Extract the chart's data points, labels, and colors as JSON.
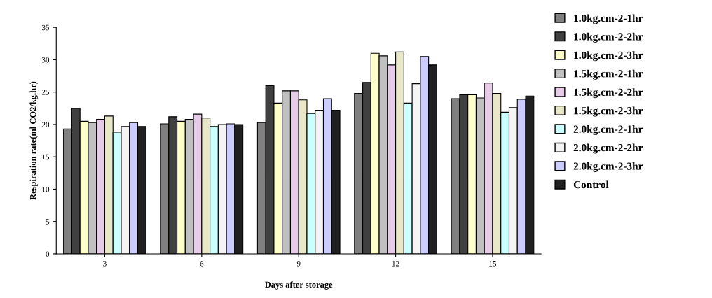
{
  "chart_data": {
    "type": "bar",
    "xlabel": "Days after storage",
    "ylabel": "Respiration rate(ml CO2/kg.hr)",
    "categories": [
      "3",
      "6",
      "9",
      "12",
      "15"
    ],
    "series": [
      {
        "name": "1.0kg.cm-2-1hr",
        "color": "#808080",
        "values": [
          19.3,
          20.1,
          20.3,
          24.8,
          24.0
        ]
      },
      {
        "name": "1.0kg.cm-2-2hr",
        "color": "#404040",
        "values": [
          22.5,
          21.2,
          26.0,
          26.5,
          24.6
        ]
      },
      {
        "name": "1.0kg.cm-2-3hr",
        "color": "#ffffcc",
        "values": [
          20.5,
          20.5,
          23.3,
          31.0,
          24.6
        ]
      },
      {
        "name": "1.5kg.cm-2-1hr",
        "color": "#c0c0c0",
        "values": [
          20.3,
          20.8,
          25.2,
          30.6,
          24.1
        ]
      },
      {
        "name": "1.5kg.cm-2-2hr",
        "color": "#e6cce6",
        "values": [
          20.8,
          21.6,
          25.2,
          29.2,
          26.4
        ]
      },
      {
        "name": "1.5kg.cm-2-3hr",
        "color": "#e8e8c8",
        "values": [
          21.3,
          21.0,
          23.8,
          31.2,
          24.8
        ]
      },
      {
        "name": "2.0kg.cm-2-1hr",
        "color": "#ccffff",
        "values": [
          18.8,
          19.7,
          21.7,
          23.3,
          21.9
        ]
      },
      {
        "name": "2.0kg.cm-2-2hr",
        "color": "#f4f4f4",
        "values": [
          19.7,
          20.0,
          22.2,
          26.3,
          22.6
        ]
      },
      {
        "name": "2.0kg.cm-2-3hr",
        "color": "#ccccff",
        "values": [
          20.3,
          20.1,
          24.0,
          30.5,
          23.9
        ]
      },
      {
        "name": "Control",
        "color": "#202020",
        "values": [
          19.7,
          20.0,
          22.2,
          29.2,
          24.4
        ]
      }
    ],
    "ylim": [
      0,
      35
    ],
    "yticks": [
      0,
      5,
      10,
      15,
      20,
      25,
      30,
      35
    ],
    "grid": false,
    "legend": "right"
  }
}
